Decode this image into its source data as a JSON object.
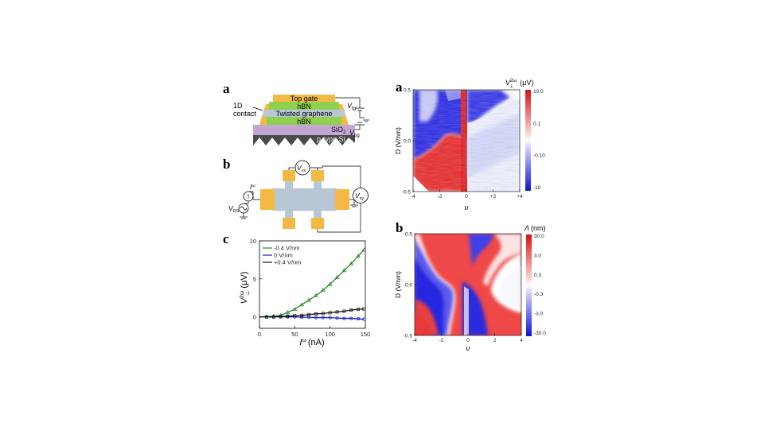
{
  "panels": {
    "left_a": {
      "label": "a"
    },
    "left_b": {
      "label": "b"
    },
    "left_c": {
      "label": "c"
    },
    "right_a": {
      "label": "a"
    },
    "right_b": {
      "label": "b"
    }
  },
  "stack": {
    "top_gate": "Top gate",
    "hbn_top": "hBN",
    "graphene": "Twisted graphene",
    "hbn_bottom": "hBN",
    "sio2": "SiO",
    "sio2_sub": "2",
    "si": "p-type Si",
    "contact_line1": "1D",
    "contact_line2": "contact",
    "vtg": "V",
    "vtg_sub": "tg",
    "vbg": "V",
    "vbg_sub": "bg"
  },
  "circuit": {
    "vxx": "V",
    "vxx_sub": "xx",
    "vxy": "V",
    "vxy_sub": "xy",
    "iw": "I",
    "iw_sup": "ω",
    "vds": "V",
    "vds_sub": "DS"
  },
  "colors": {
    "gold": "#f4b942",
    "green": "#8fd14f",
    "graphene": "#b8c7d6",
    "sio2": "#c3a6d4",
    "si": "#4a4a4a",
    "red": "#e02020",
    "blue": "#2020e0",
    "curve_green": "#1e8a1e",
    "curve_blue": "#1a1ad0",
    "curve_black": "#111111"
  },
  "chart_data": [
    {
      "type": "line",
      "xlabel": "I",
      "xlabel_sup": "ω",
      "xlabel_unit": "(nA)",
      "ylabel": "V",
      "ylabel_sup": "2ω",
      "ylabel_sub": "⊥",
      "ylabel_unit": "(μV)",
      "xlim": [
        0,
        150
      ],
      "ylim": [
        -1.5,
        10
      ],
      "xticks": [
        "0",
        "50",
        "100",
        "150"
      ],
      "yticks": [
        "0",
        "5",
        "10"
      ],
      "series": [
        {
          "name": "-0.4 V/nm",
          "color": "#1e8a1e",
          "x": [
            20,
            30,
            40,
            50,
            60,
            70,
            80,
            90,
            100,
            110,
            120,
            130,
            140,
            148
          ],
          "y": [
            0.1,
            0.2,
            0.6,
            1.0,
            1.6,
            2.2,
            2.8,
            3.5,
            4.3,
            5.2,
            6.1,
            7.0,
            8.0,
            8.8
          ]
        },
        {
          "name": "0 V/nm",
          "color": "#1a1ad0",
          "x": [
            10,
            20,
            30,
            40,
            50,
            60,
            70,
            80,
            90,
            100,
            110,
            120,
            130,
            140,
            148
          ],
          "y": [
            0.0,
            0.0,
            0.0,
            0.0,
            0.0,
            -0.05,
            -0.05,
            -0.1,
            -0.1,
            -0.1,
            -0.15,
            -0.2,
            -0.2,
            -0.25,
            -0.3
          ]
        },
        {
          "name": "+0.4 V/nm",
          "color": "#111111",
          "x": [
            10,
            20,
            30,
            40,
            50,
            60,
            70,
            80,
            90,
            100,
            110,
            120,
            130,
            140,
            148
          ],
          "y": [
            0.0,
            0.0,
            0.05,
            0.1,
            0.15,
            0.2,
            0.3,
            0.4,
            0.45,
            0.55,
            0.65,
            0.75,
            0.9,
            1.0,
            1.05
          ]
        }
      ]
    },
    {
      "type": "heatmap",
      "xlabel": "υ",
      "ylabel": "D (V/nm)",
      "colorbar_label": "V",
      "colorbar_sup": "2ω",
      "colorbar_sub": "⊥",
      "colorbar_unit": "(μV)",
      "xticks": [
        "-4",
        "-2",
        "0",
        "+2",
        "+4"
      ],
      "yticks": [
        "0.5",
        "0.0",
        "-0.5"
      ],
      "colorbar_ticks": [
        "10.0",
        "0.1",
        "-0.10",
        "-10"
      ]
    },
    {
      "type": "heatmap",
      "xlabel": "υ",
      "ylabel": "D (V/nm)",
      "colorbar_label": "Λ",
      "colorbar_unit": "(nm)",
      "xticks": [
        "-4",
        "-2",
        "0",
        "2",
        "4"
      ],
      "yticks": [
        "0.5",
        "0.0",
        "-0.5"
      ],
      "colorbar_ticks": [
        "30.0",
        "3.0",
        "0.3",
        "-0.3",
        "-3.0",
        "-30.0"
      ]
    }
  ]
}
